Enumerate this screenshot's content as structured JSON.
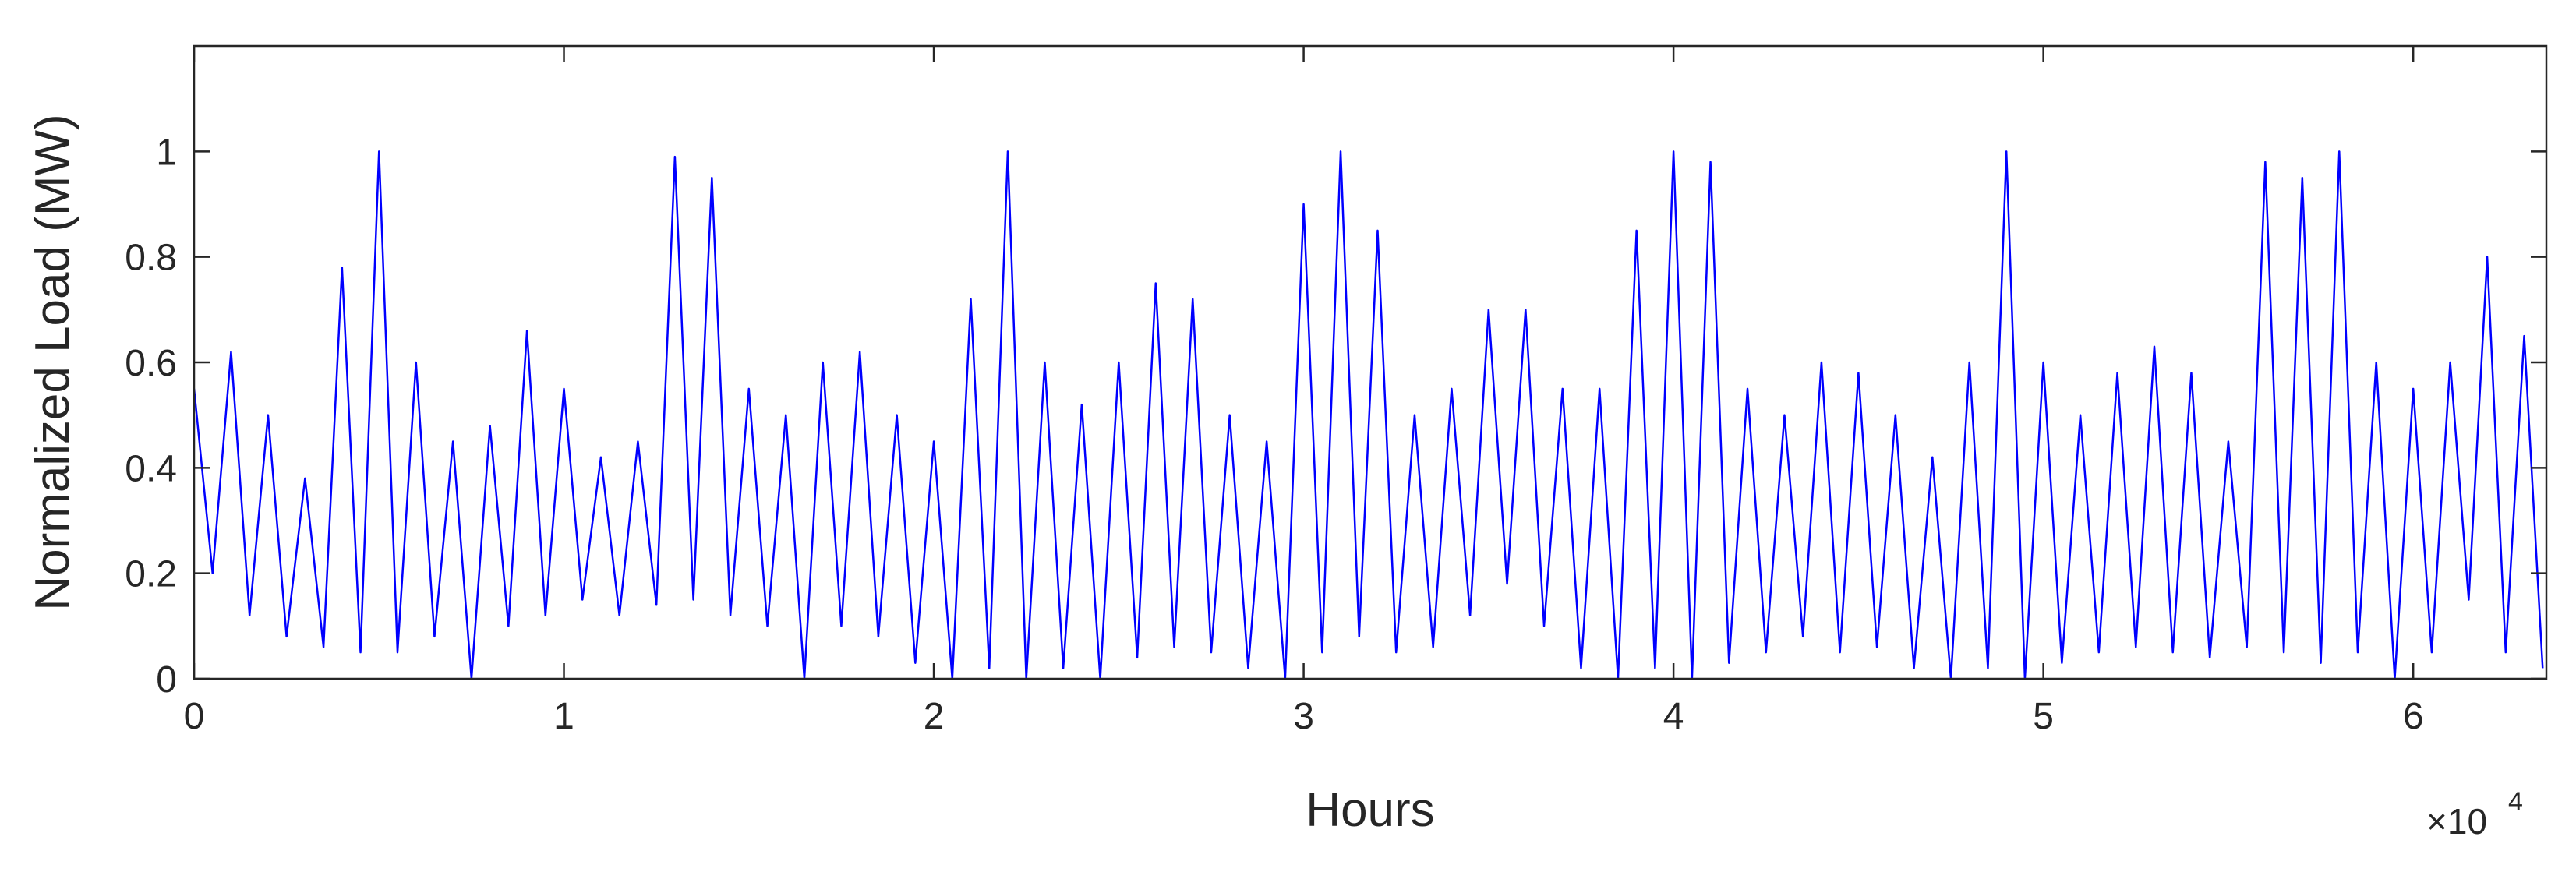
{
  "chart_data": {
    "type": "line",
    "xlabel": "Hours",
    "ylabel": "Normalized Load (MW)",
    "x_multiplier": {
      "base": "×10",
      "exponent": "4"
    },
    "color": "#0000ff",
    "xlim": [
      0,
      63600
    ],
    "ylim": [
      0,
      1.2
    ],
    "xticks": [
      0,
      {
        "value": 10000,
        "label": "1"
      },
      {
        "value": 20000,
        "label": "2"
      },
      {
        "value": 30000,
        "label": "3"
      },
      {
        "value": 40000,
        "label": "4"
      },
      {
        "value": 50000,
        "label": "5"
      },
      {
        "value": 60000,
        "label": "6"
      }
    ],
    "yticks": [
      0,
      0.2,
      0.4,
      0.6,
      0.8,
      1
    ],
    "x": [
      0,
      500,
      1000,
      1500,
      2000,
      2500,
      3000,
      3500,
      4000,
      4500,
      5000,
      5500,
      6000,
      6500,
      7000,
      7500,
      8000,
      8500,
      9000,
      9500,
      10000,
      10500,
      11000,
      11500,
      12000,
      12500,
      13000,
      13500,
      14000,
      14500,
      15000,
      15500,
      16000,
      16500,
      17000,
      17500,
      18000,
      18500,
      19000,
      19500,
      20000,
      20500,
      21000,
      21500,
      22000,
      22500,
      23000,
      23500,
      24000,
      24500,
      25000,
      25500,
      26000,
      26500,
      27000,
      27500,
      28000,
      28500,
      29000,
      29500,
      30000,
      30500,
      31000,
      31500,
      32000,
      32500,
      33000,
      33500,
      34000,
      34500,
      35000,
      35500,
      36000,
      36500,
      37000,
      37500,
      38000,
      38500,
      39000,
      39500,
      40000,
      40500,
      41000,
      41500,
      42000,
      42500,
      43000,
      43500,
      44000,
      44500,
      45000,
      45500,
      46000,
      46500,
      47000,
      47500,
      48000,
      48500,
      49000,
      49500,
      50000,
      50500,
      51000,
      51500,
      52000,
      52500,
      53000,
      53500,
      54000,
      54500,
      55000,
      55500,
      56000,
      56500,
      57000,
      57500,
      58000,
      58500,
      59000,
      59500,
      60000,
      60500,
      61000,
      61500,
      62000,
      62500,
      63000,
      63500
    ],
    "values": [
      0.55,
      0.2,
      0.62,
      0.12,
      0.5,
      0.08,
      0.38,
      0.06,
      0.78,
      0.05,
      1.0,
      0.05,
      0.6,
      0.08,
      0.45,
      0.0,
      0.48,
      0.1,
      0.66,
      0.12,
      0.55,
      0.15,
      0.42,
      0.12,
      0.45,
      0.14,
      0.99,
      0.15,
      0.95,
      0.12,
      0.55,
      0.1,
      0.5,
      0.0,
      0.6,
      0.1,
      0.62,
      0.08,
      0.5,
      0.03,
      0.45,
      0.0,
      0.72,
      0.02,
      1.0,
      0.0,
      0.6,
      0.02,
      0.52,
      0.0,
      0.6,
      0.04,
      0.75,
      0.06,
      0.72,
      0.05,
      0.5,
      0.02,
      0.45,
      0.0,
      0.9,
      0.05,
      1.0,
      0.08,
      0.85,
      0.05,
      0.5,
      0.06,
      0.55,
      0.12,
      0.7,
      0.18,
      0.7,
      0.1,
      0.55,
      0.02,
      0.55,
      0.0,
      0.85,
      0.02,
      1.0,
      0.0,
      0.98,
      0.03,
      0.55,
      0.05,
      0.5,
      0.08,
      0.6,
      0.05,
      0.58,
      0.06,
      0.5,
      0.02,
      0.42,
      0.0,
      0.6,
      0.02,
      1.0,
      0.0,
      0.6,
      0.03,
      0.5,
      0.05,
      0.58,
      0.06,
      0.63,
      0.05,
      0.58,
      0.04,
      0.45,
      0.06,
      0.98,
      0.05,
      0.95,
      0.03,
      1.0,
      0.05,
      0.6,
      0.0,
      0.55,
      0.05,
      0.6,
      0.15,
      0.8,
      0.05,
      0.65,
      0.02
    ]
  }
}
